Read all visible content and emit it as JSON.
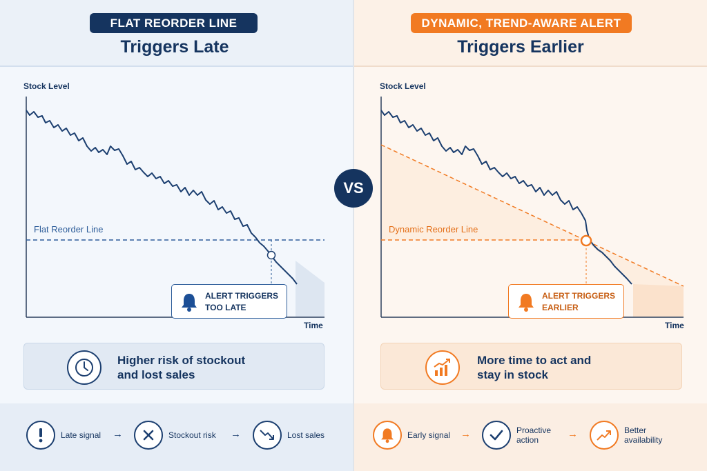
{
  "left": {
    "tag": "FLAT REORDER LINE",
    "title": "Triggers Late",
    "y_axis_label": "Stock Level",
    "x_axis_label": "Time",
    "line_label": "Flat Reorder Line",
    "callout_line1": "ALERT TRIGGERS",
    "callout_line2": "TOO LATE",
    "summary_line1": "Higher risk of stockout",
    "summary_line2": "and lost sales",
    "steps": [
      {
        "label": "Late signal",
        "icon": "exclamation-icon"
      },
      {
        "label": "Stockout risk",
        "icon": "x-icon"
      },
      {
        "label": "Lost sales",
        "icon": "trend-down-icon"
      }
    ],
    "summary_icon": "clock-icon",
    "callout_icon": "bell-icon"
  },
  "right": {
    "tag": "DYNAMIC, TREND-AWARE ALERT",
    "title": "Triggers Earlier",
    "y_axis_label": "Stock Level",
    "x_axis_label": "Time",
    "line_label": "Dynamic Reorder Line",
    "callout_line1": "ALERT TRIGGERS",
    "callout_line2": "EARLIER",
    "summary_line1": "More time to act and",
    "summary_line2": "stay in stock",
    "steps": [
      {
        "label": "Early signal",
        "icon": "bell-icon"
      },
      {
        "label_line1": "Proactive",
        "label_line2": "action",
        "icon": "check-icon"
      },
      {
        "label_line1": "Better",
        "label_line2": "availability",
        "icon": "trend-up-icon"
      }
    ],
    "summary_icon": "bar-chart-up-icon",
    "callout_icon": "bell-icon"
  },
  "vs_label": "VS",
  "colors": {
    "navy": "#15345f",
    "line_blue": "#1c3f70",
    "accent_orange": "#f17a22",
    "left_bg": "#f3f7fc",
    "right_bg": "#fdf6f0"
  }
}
